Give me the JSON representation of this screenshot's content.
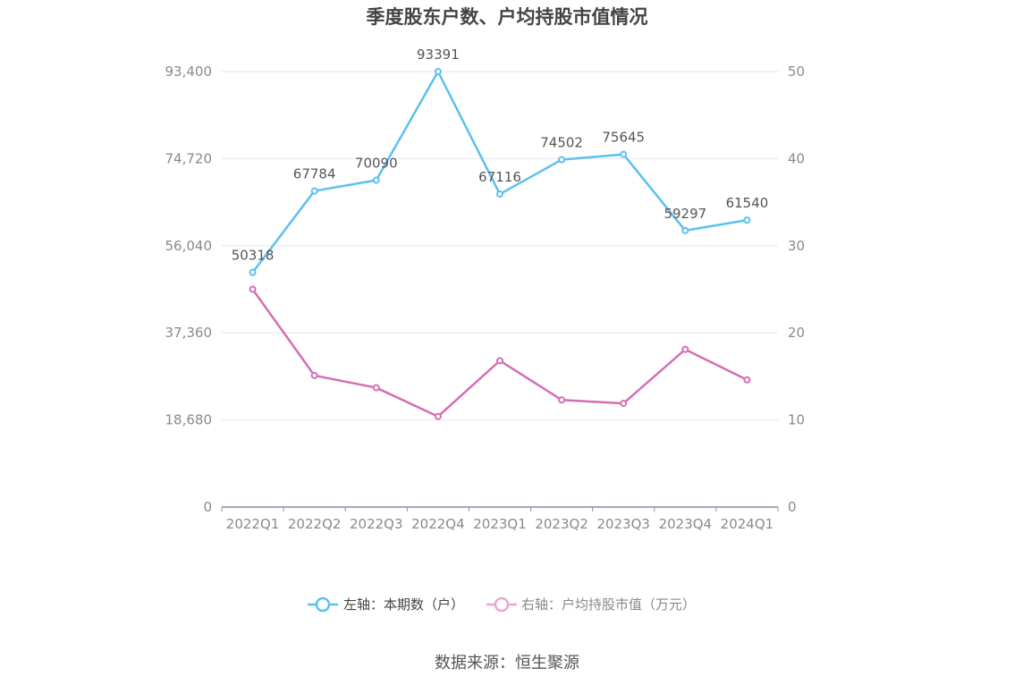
{
  "chart_data": {
    "type": "line",
    "title": "季度股东户数、户均持股市值情况",
    "categories": [
      "2022Q1",
      "2022Q2",
      "2022Q3",
      "2022Q4",
      "2023Q1",
      "2023Q2",
      "2023Q3",
      "2023Q4",
      "2024Q1"
    ],
    "left_axis": {
      "ticks": [
        "0",
        "18,680",
        "37,360",
        "56,040",
        "74,720",
        "93,400"
      ],
      "min": 0,
      "max": 93400
    },
    "right_axis": {
      "ticks": [
        "0",
        "10",
        "20",
        "30",
        "40",
        "50"
      ],
      "min": 0,
      "max": 50
    },
    "grid": true,
    "legend_position": "bottom",
    "series": [
      {
        "name": "左轴：本期数（户）",
        "axis": "left",
        "color": "#5bc0f0",
        "values": [
          50318,
          67784,
          70090,
          93391,
          67116,
          74502,
          75645,
          59297,
          61540
        ],
        "labels": [
          "50318",
          "67784",
          "70090",
          "93391",
          "67116",
          "74502",
          "75645",
          "59297",
          "61540"
        ]
      },
      {
        "name": "右轴：户均持股市值（万元）",
        "axis": "right",
        "color": "#d46eb3",
        "values": [
          25.0,
          15.1,
          13.7,
          10.4,
          16.8,
          12.3,
          11.9,
          18.1,
          14.6
        ]
      }
    ]
  },
  "source": "数据来源：恒生聚源"
}
